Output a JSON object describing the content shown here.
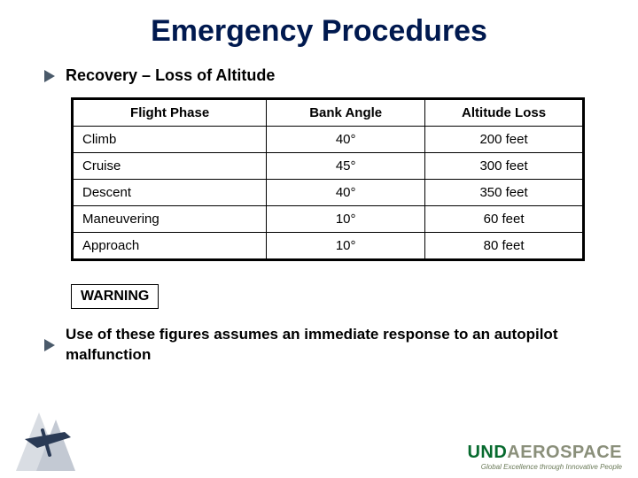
{
  "title": "Emergency Procedures",
  "subheading": "Recovery – Loss of Altitude",
  "bullet_color": "#4a5a6a",
  "table": {
    "columns": [
      "Flight Phase",
      "Bank Angle",
      "Altitude Loss"
    ],
    "rows": [
      [
        "Climb",
        "40°",
        "200 feet"
      ],
      [
        "Cruise",
        "45°",
        "300 feet"
      ],
      [
        "Descent",
        "40°",
        "350 feet"
      ],
      [
        "Maneuvering",
        "10°",
        "60 feet"
      ],
      [
        "Approach",
        "10°",
        "80 feet"
      ]
    ],
    "border_color": "#000000",
    "header_fontsize": 15,
    "cell_fontsize": 15
  },
  "warning_label": "WARNING",
  "warning_text": "Use of these figures assumes an immediate response to an autopilot malfunction",
  "brand": {
    "und_text": "UND",
    "und_color": "#076a2e",
    "aero_text": "AEROSPACE",
    "aero_color": "#8a8f7a",
    "tagline": "Global Excellence through Innovative People"
  },
  "colors": {
    "title": "#00194f",
    "background": "#ffffff"
  }
}
